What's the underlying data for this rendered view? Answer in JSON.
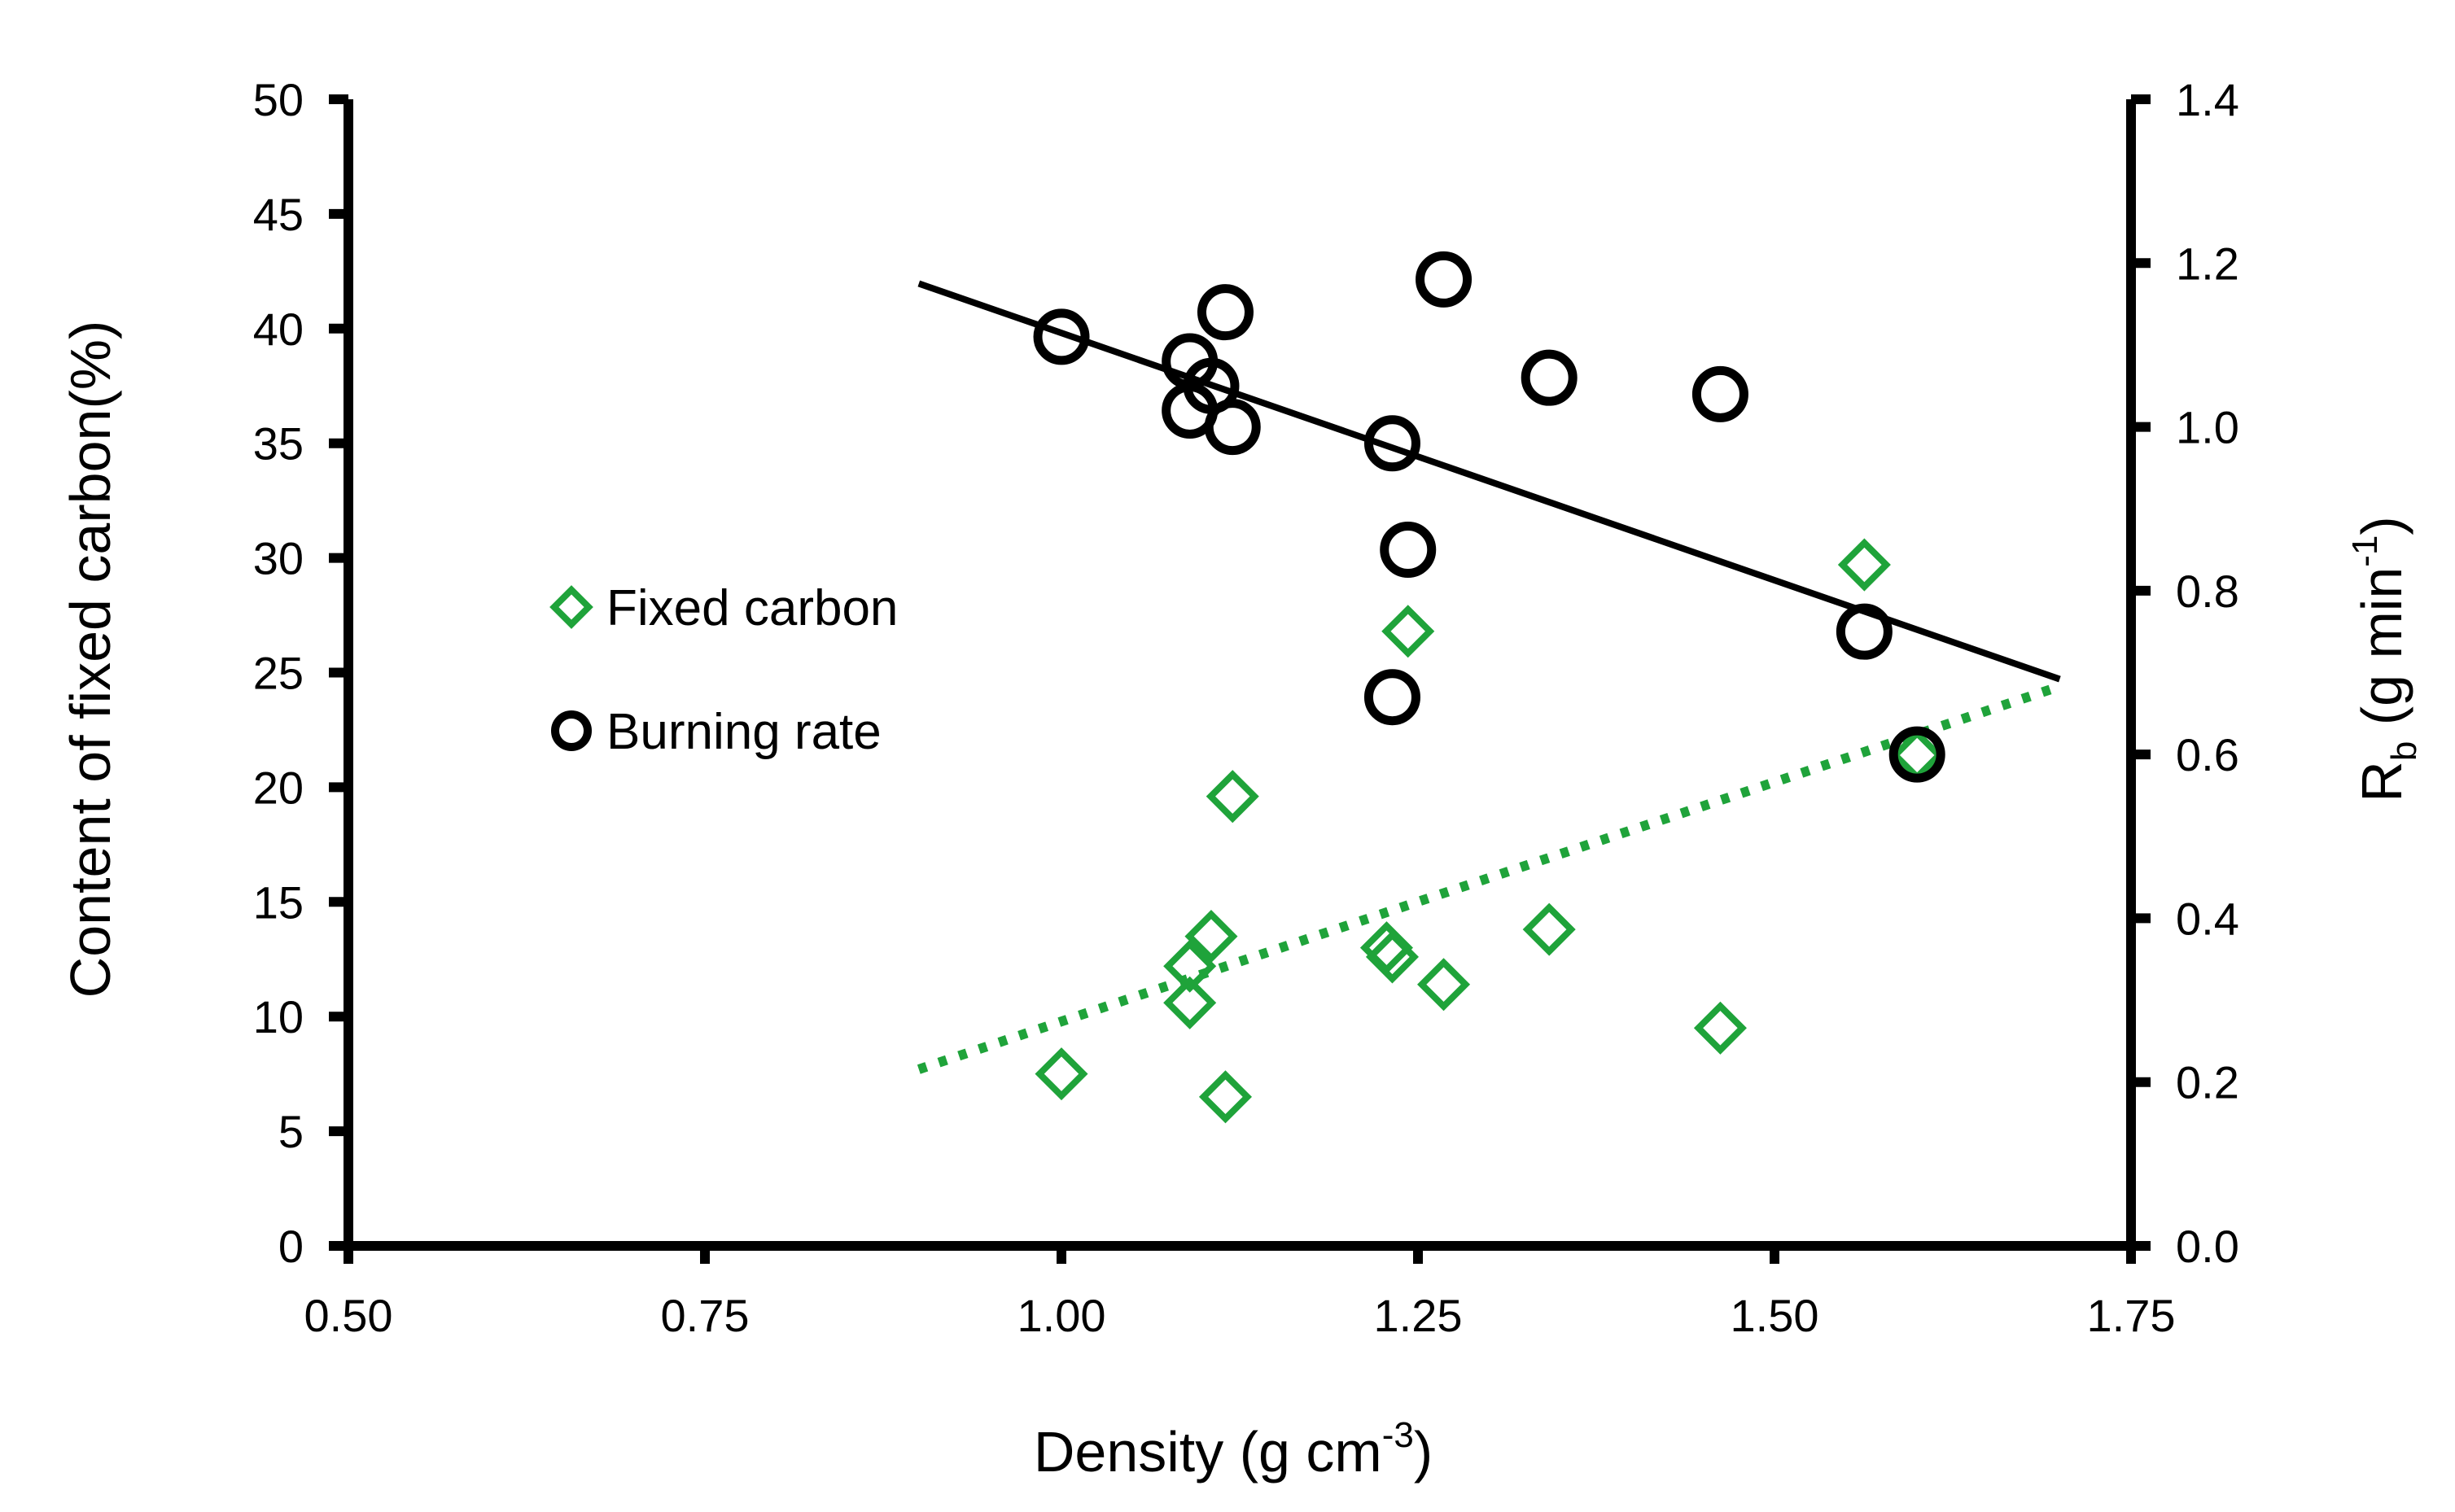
{
  "chart_data": {
    "type": "scatter",
    "xlabel": {
      "base": "Density (g cm",
      "sup": "-3",
      "tail": ")"
    },
    "ylabel_left": "Content of fixed carbon(%)",
    "ylabel_right": {
      "base": "R",
      "sub": "b",
      "mid": " (g min",
      "sup": "-1",
      "tail": ")"
    },
    "xlim": [
      0.5,
      1.75
    ],
    "ylim_left": [
      0,
      50
    ],
    "ylim_right": [
      0,
      1.4
    ],
    "x_ticks": [
      0.5,
      0.75,
      1.0,
      1.25,
      1.5,
      1.75
    ],
    "x_tick_labels": [
      "0.50",
      "0.75",
      "1.00",
      "1.25",
      "1.50",
      "1.75"
    ],
    "y_left_ticks": [
      0,
      5,
      10,
      15,
      20,
      25,
      30,
      35,
      40,
      45,
      50
    ],
    "y_left_tick_labels": [
      "0",
      "5",
      "10",
      "15",
      "20",
      "25",
      "30",
      "35",
      "40",
      "45",
      "50"
    ],
    "y_right_ticks": [
      0,
      0.2,
      0.4,
      0.6,
      0.8,
      1.0,
      1.2,
      1.4
    ],
    "y_right_tick_labels": [
      "0.0",
      "0.2",
      "0.4",
      "0.6",
      "0.8",
      "1.0",
      "1.2",
      "1.4"
    ],
    "grid": false,
    "legend_position": "center-left",
    "series": [
      {
        "name": "Fixed carbon",
        "axis": "left",
        "marker": "diamond",
        "color": "#1fa33a",
        "x": [
          1.0,
          1.09,
          1.09,
          1.105,
          1.115,
          1.12,
          1.228,
          1.232,
          1.243,
          1.268,
          1.342,
          1.462,
          1.563,
          1.6
        ],
        "y": [
          7.5,
          12.2,
          10.6,
          13.5,
          6.5,
          19.6,
          13.0,
          12.6,
          26.8,
          11.4,
          13.8,
          9.5,
          29.7,
          21.4
        ],
        "trendline": {
          "style": "dotted",
          "x_range": [
            0.9,
            1.7
          ],
          "y_range": [
            7.7,
            24.4
          ]
        }
      },
      {
        "name": "Burning rate",
        "axis": "right",
        "marker": "circle",
        "color": "#000000",
        "x": [
          1.0,
          1.09,
          1.09,
          1.105,
          1.115,
          1.12,
          1.232,
          1.232,
          1.243,
          1.268,
          1.342,
          1.462,
          1.563,
          1.6
        ],
        "y": [
          1.11,
          1.08,
          1.02,
          1.05,
          1.14,
          1.0,
          0.98,
          0.67,
          0.85,
          1.18,
          1.06,
          1.04,
          0.75,
          0.6
        ],
        "trendline": {
          "style": "solid",
          "x_range": [
            0.9,
            1.7
          ],
          "y_range": [
            1.175,
            0.692
          ]
        }
      }
    ]
  }
}
